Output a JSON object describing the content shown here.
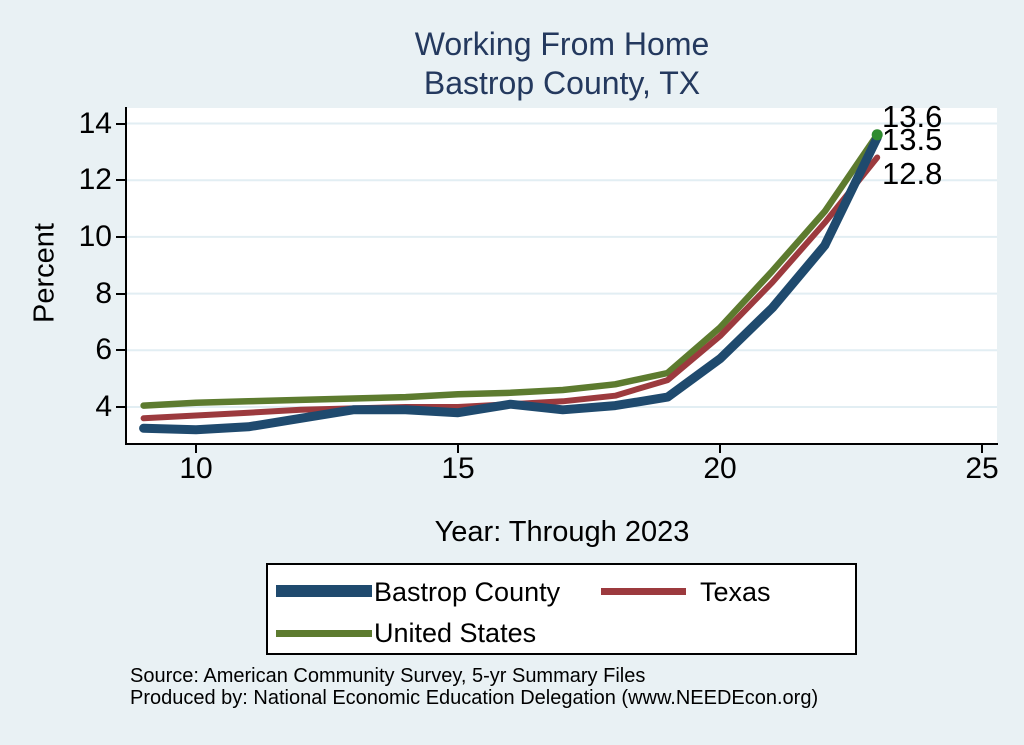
{
  "chart_data": {
    "type": "line",
    "title": "Working From Home",
    "subtitle": "Bastrop County, TX",
    "xlabel": "Year: Through 2023",
    "ylabel": "Percent",
    "x": [
      9,
      10,
      11,
      12,
      13,
      14,
      15,
      16,
      17,
      18,
      19,
      20,
      21,
      22,
      23
    ],
    "series": [
      {
        "name": "Bastrop County",
        "color": "#1f4a6e",
        "values": [
          3.25,
          3.2,
          3.3,
          3.6,
          3.9,
          3.9,
          3.8,
          4.1,
          3.9,
          4.05,
          4.35,
          5.7,
          7.5,
          9.7,
          13.5
        ]
      },
      {
        "name": "Texas",
        "color": "#9c3a3e",
        "values": [
          3.6,
          3.7,
          3.8,
          3.9,
          3.95,
          4.0,
          4.0,
          4.1,
          4.2,
          4.4,
          4.95,
          6.5,
          8.4,
          10.5,
          12.8
        ]
      },
      {
        "name": "United States",
        "color": "#5d7b2f",
        "values": [
          4.05,
          4.15,
          4.2,
          4.25,
          4.3,
          4.35,
          4.45,
          4.5,
          4.6,
          4.8,
          5.2,
          6.8,
          8.8,
          10.9,
          13.6
        ]
      }
    ],
    "end_labels": [
      {
        "label": "13.6",
        "series": "United States"
      },
      {
        "label": "13.5",
        "series": "Bastrop County"
      },
      {
        "label": "12.8",
        "series": "Texas"
      }
    ],
    "end_marker_color": "#2e8b2e",
    "x_ticks": [
      "10",
      "15",
      "20",
      "25"
    ],
    "y_ticks": [
      "4",
      "6",
      "8",
      "10",
      "12",
      "14"
    ],
    "xlim": [
      8.7,
      25.3
    ],
    "ylim": [
      2.7,
      14.6
    ],
    "grid": "horizontal",
    "legend_position": "bottom"
  },
  "colors": {
    "background": "#e9f1f4",
    "plot_background": "#ffffff",
    "gridline": "#e2eef3",
    "axis": "#000000",
    "title": "#24395e"
  },
  "footer": {
    "source": "Source: American Community Survey, 5-yr Summary Files",
    "produced_by": "Produced by: National Economic Education Delegation (www.NEEDEcon.org)"
  }
}
